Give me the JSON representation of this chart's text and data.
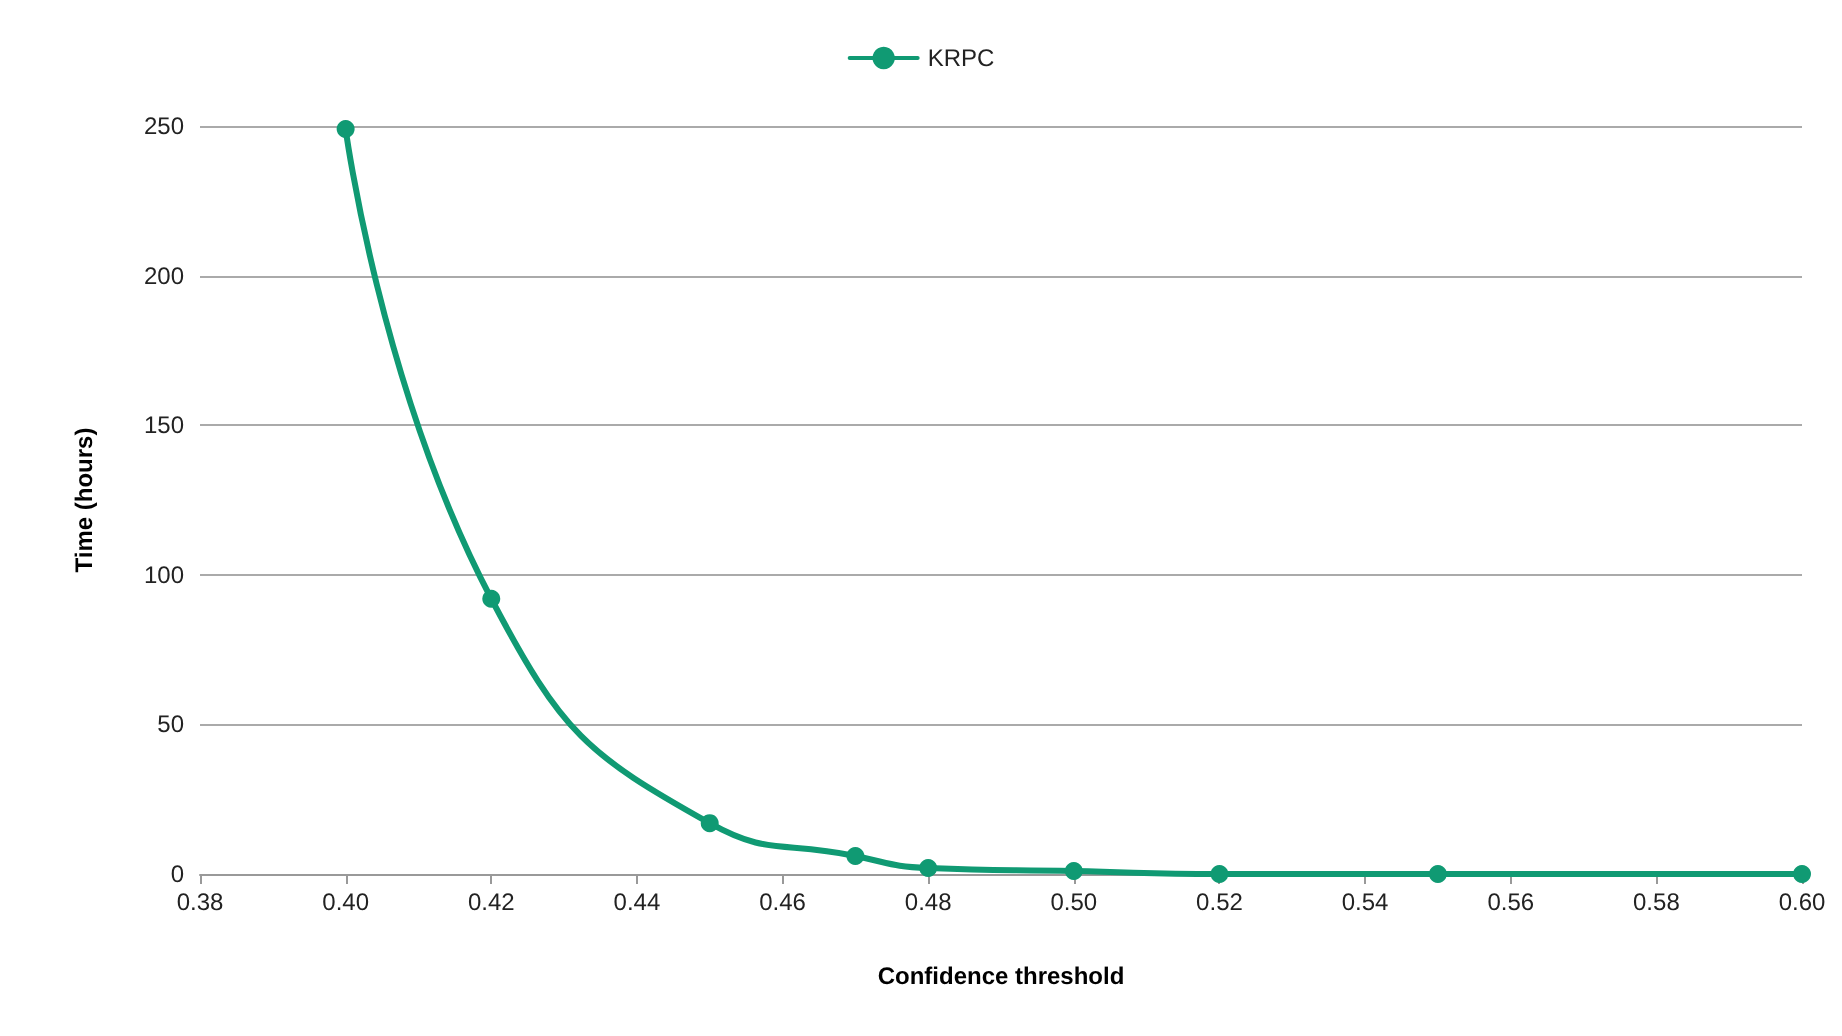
{
  "chart_data": {
    "type": "line",
    "xlabel": "Confidence threshold",
    "ylabel": "Time (hours)",
    "x": [
      0.4,
      0.42,
      0.45,
      0.47,
      0.48,
      0.5,
      0.52,
      0.55,
      0.6
    ],
    "series": [
      {
        "name": "KRPC",
        "color": "#109a73",
        "values": [
          249,
          92,
          17,
          6,
          2,
          1,
          0,
          0,
          0
        ]
      }
    ],
    "xlim": [
      0.38,
      0.6
    ],
    "xticks": [
      {
        "value": 0.38,
        "label": "0.38"
      },
      {
        "value": 0.4,
        "label": "0.40"
      },
      {
        "value": 0.42,
        "label": "0.42"
      },
      {
        "value": 0.44,
        "label": "0.44"
      },
      {
        "value": 0.46,
        "label": "0.46"
      },
      {
        "value": 0.48,
        "label": "0.48"
      },
      {
        "value": 0.5,
        "label": "0.50"
      },
      {
        "value": 0.52,
        "label": "0.52"
      },
      {
        "value": 0.54,
        "label": "0.54"
      },
      {
        "value": 0.56,
        "label": "0.56"
      },
      {
        "value": 0.58,
        "label": "0.58"
      },
      {
        "value": 0.6,
        "label": "0.60"
      }
    ],
    "ylim": [
      0,
      250
    ],
    "yticks": [
      0,
      50,
      100,
      150,
      200,
      250
    ],
    "grid": "y",
    "legend": "top",
    "marker": "circle",
    "line_style": "solid"
  }
}
